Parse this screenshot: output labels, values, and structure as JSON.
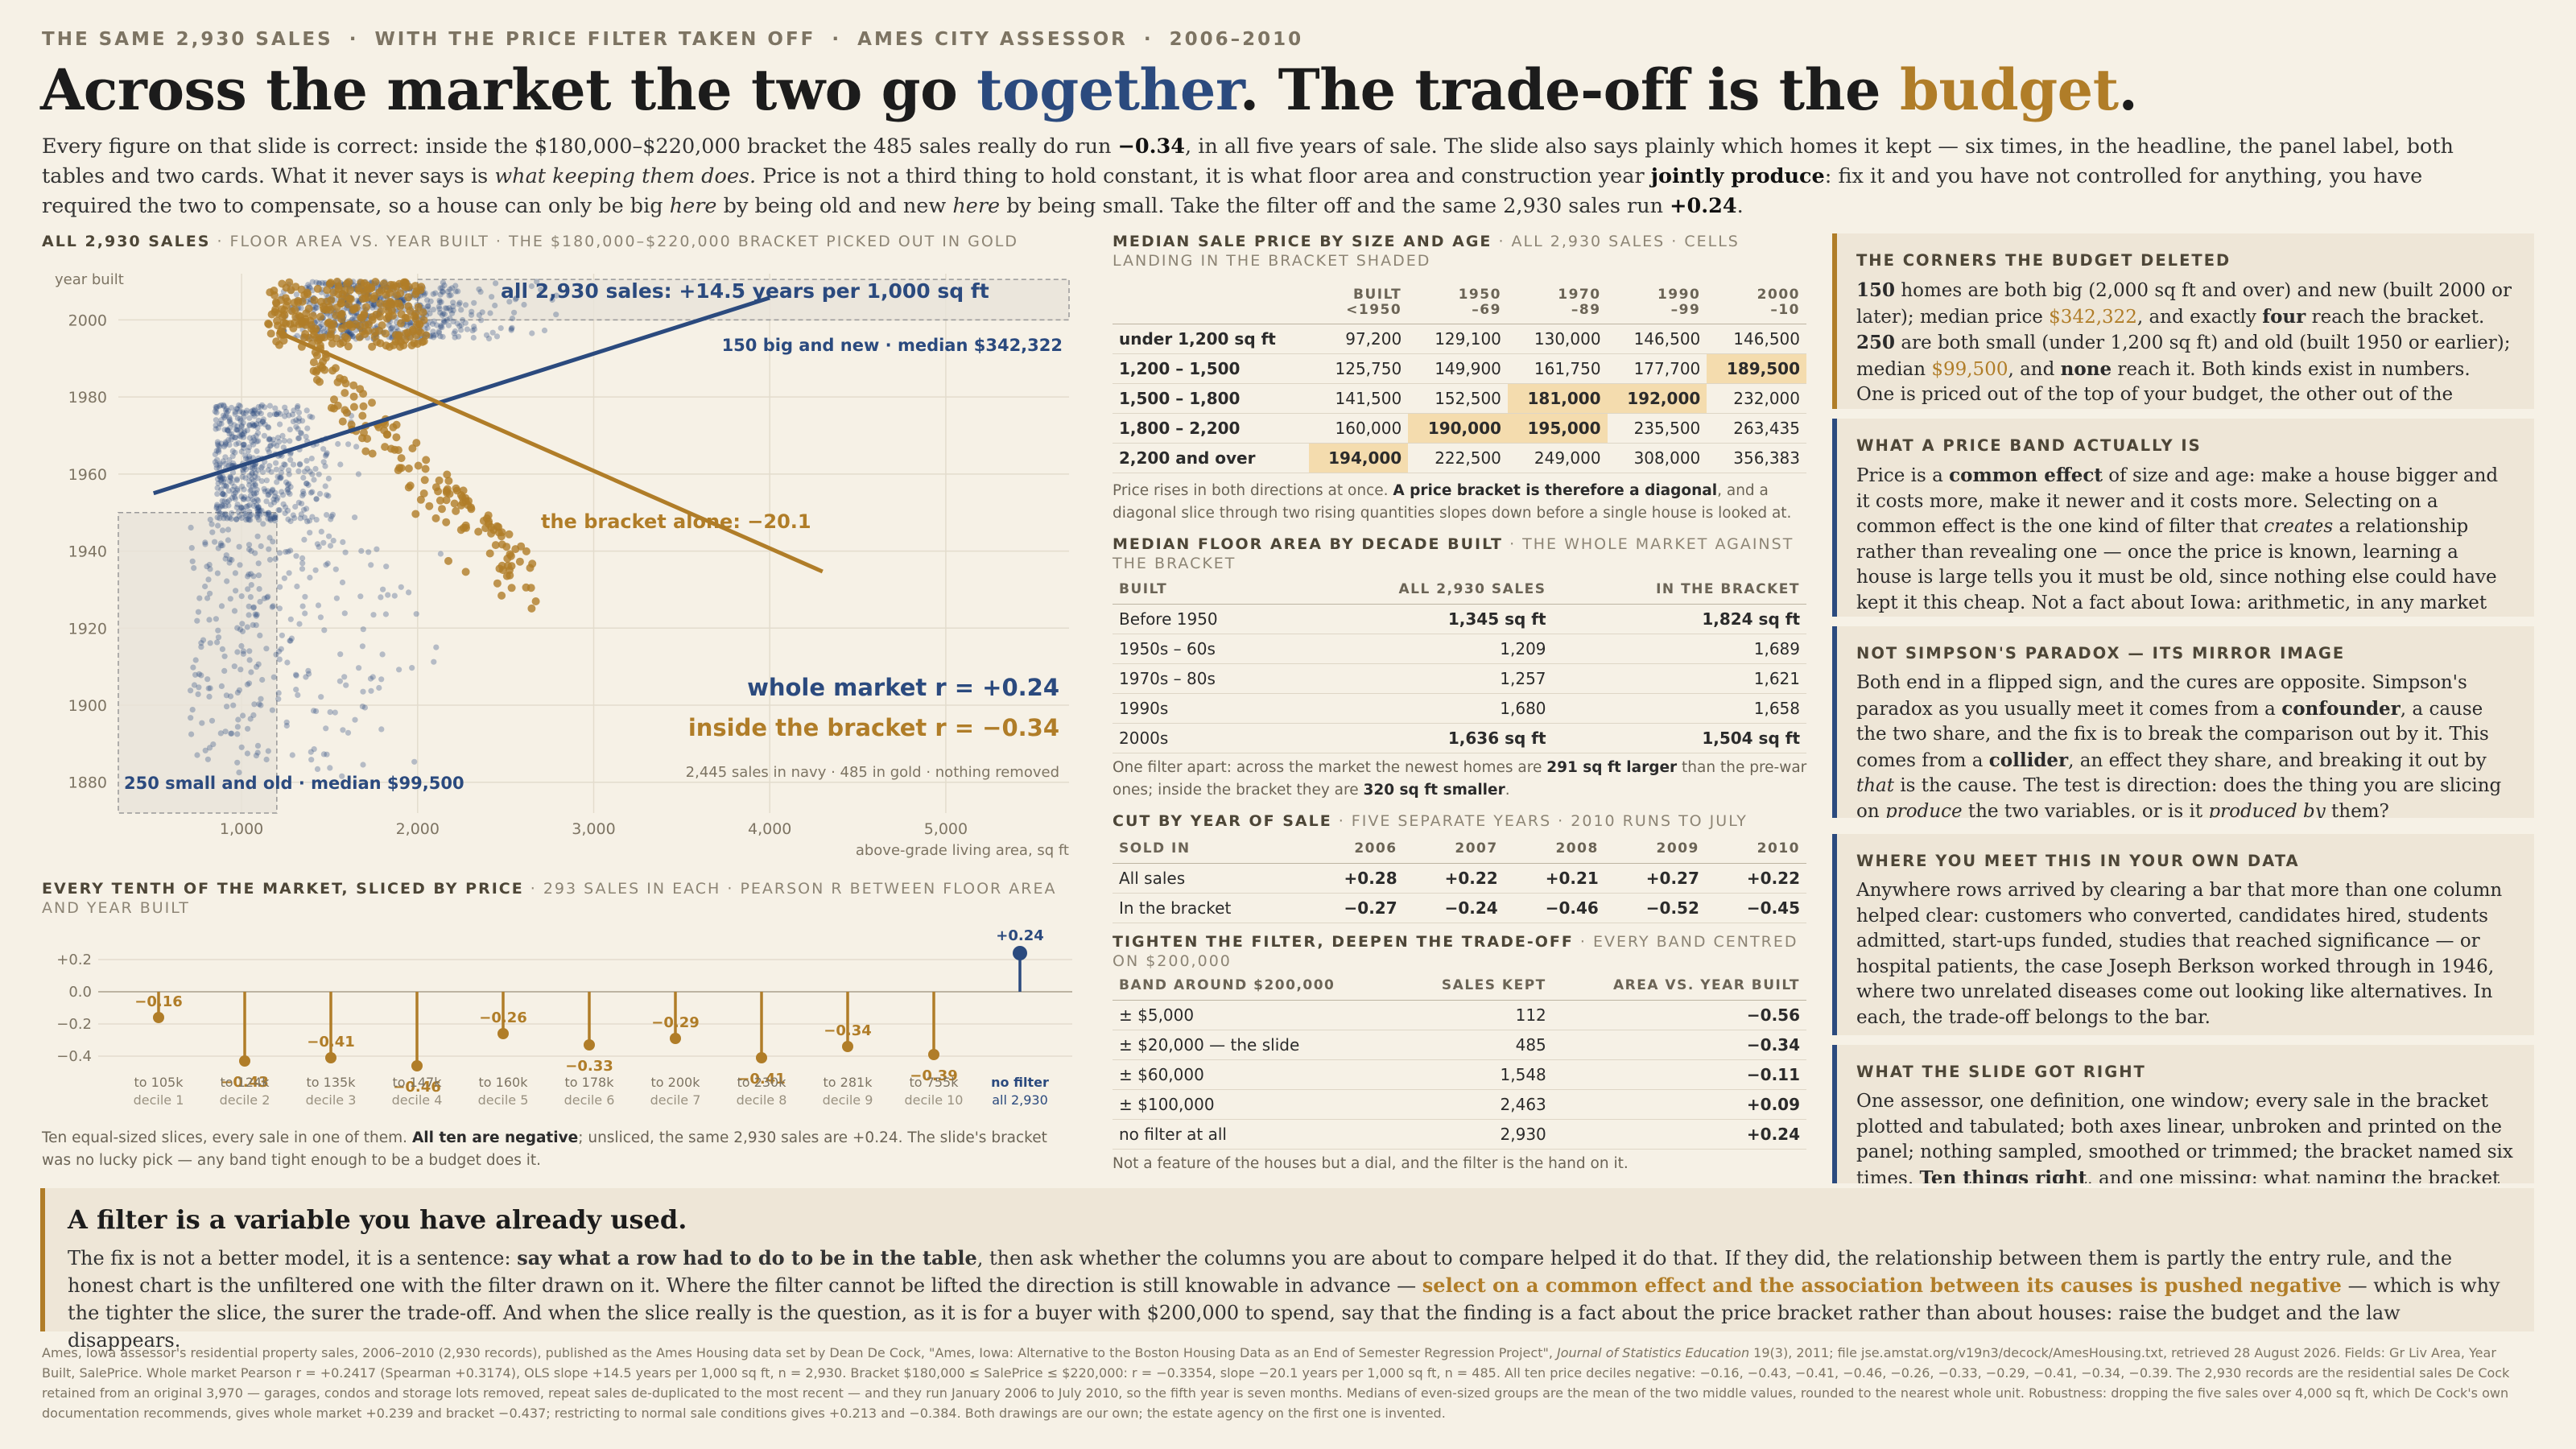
{
  "kicker": {
    "parts": [
      "THE SAME 2,930 SALES",
      "WITH THE PRICE FILTER TAKEN OFF",
      "AMES CITY ASSESSOR",
      "2006–2010"
    ],
    "separator": "·"
  },
  "headline": {
    "p1": "Across the market the two go ",
    "w1": "together",
    "p2": ". The trade-off is the ",
    "w2": "budget",
    "p3": "."
  },
  "lede": {
    "t1": "Every figure on that slide is correct: inside the $180,000–$220,000 bracket the 485 sales really do run ",
    "b1": "−0.34",
    "t2": ", in all five years of sale. The slide also says plainly which homes it kept — six times, in the headline, the panel label, both tables and two cards. What it never says is ",
    "i1": "what keeping them does.",
    "t3": " Price is not a third thing to hold constant, it is what floor area and construction year ",
    "b2": "jointly produce",
    "t4": ": fix it and you have not controlled for anything, you have required the two to compensate, so a house can only be big ",
    "i2": "here",
    "t5": " by being old and new ",
    "i3": "here",
    "t6": " by being small. Take the filter off and the same 2,930 sales run ",
    "b3": "+0.24",
    "t7": "."
  },
  "colors": {
    "navy": "#2b4a7e",
    "gold": "#b07d28",
    "background": "#f6f1e6",
    "highlight": "#f4dcae"
  },
  "scatter": {
    "title_bold": "ALL 2,930 SALES",
    "title_rest": " · FLOOR AREA VS. YEAR BUILT · THE $180,000–$220,000 BRACKET PICKED OUT IN GOLD",
    "y_label": "year built",
    "x_label": "above-grade living area, sq ft",
    "y_ticks": [
      "2000",
      "1980",
      "1960",
      "1940",
      "1920",
      "1900",
      "1880"
    ],
    "x_ticks": [
      "1,000",
      "2,000",
      "3,000",
      "4,000",
      "5,000"
    ],
    "line_market": "all 2,930 sales: +14.5 years per 1,000 sq ft",
    "line_bracket": "the bracket alone: −20.1",
    "corner_big_new": "150 big and new · median $342,322",
    "corner_small_old": "250 small and old · median $99,500",
    "r_market": "whole market r = +0.24",
    "r_bracket": "inside the bracket r = −0.34",
    "count_note": "2,445 sales in navy · 485 in gold · nothing removed"
  },
  "chart_data": {
    "type": "scatter",
    "xlabel": "above-grade living area, sq ft",
    "ylabel": "year built",
    "xlim": [
      300,
      5700
    ],
    "ylim": [
      1872,
      2012
    ],
    "series": [
      {
        "name": "2,445 sales in navy",
        "slope_per_1000": 14.5,
        "r": 0.24
      },
      {
        "name": "485 in gold",
        "slope_per_1000": -20.1,
        "r": -0.34
      }
    ],
    "grid": true
  },
  "deciles": {
    "title_bold": "EVERY TENTH OF THE MARKET, SLICED BY PRICE",
    "title_rest": " · 293 SALES IN EACH · PEARSON R BETWEEN FLOOR AREA AND YEAR BUILT",
    "y_ticks": [
      "+0.2",
      "0.0",
      "−0.2",
      "−0.4"
    ],
    "items": [
      {
        "value": -0.16,
        "label": "−0.16",
        "range": "to 105k",
        "name": "decile 1"
      },
      {
        "value": -0.43,
        "label": "−0.43",
        "range": "to 124k",
        "name": "decile 2"
      },
      {
        "value": -0.41,
        "label": "−0.41",
        "range": "to 135k",
        "name": "decile 3"
      },
      {
        "value": -0.46,
        "label": "−0.46",
        "range": "to 147k",
        "name": "decile 4"
      },
      {
        "value": -0.26,
        "label": "−0.26",
        "range": "to 160k",
        "name": "decile 5"
      },
      {
        "value": -0.33,
        "label": "−0.33",
        "range": "to 178k",
        "name": "decile 6"
      },
      {
        "value": -0.29,
        "label": "−0.29",
        "range": "to 200k",
        "name": "decile 7"
      },
      {
        "value": -0.41,
        "label": "−0.41",
        "range": "to 230k",
        "name": "decile 8"
      },
      {
        "value": -0.34,
        "label": "−0.34",
        "range": "to 281k",
        "name": "decile 9"
      },
      {
        "value": -0.39,
        "label": "−0.39",
        "range": "to 755k",
        "name": "decile 10"
      },
      {
        "value": 0.24,
        "label": "+0.24",
        "range": "no filter",
        "name": "all 2,930"
      }
    ],
    "note_t1": "Ten equal-sized slices, every sale in one of them. ",
    "note_b1": "All ten are negative",
    "note_t2": "; unsliced, the same 2,930 sales are +0.24. The slide's bracket was no lucky pick — any band tight enough to be a budget does it."
  },
  "median_price": {
    "title_bold": "MEDIAN SALE PRICE BY SIZE AND AGE",
    "title_rest": " · ALL 2,930 SALES · CELLS LANDING IN THE BRACKET SHADED",
    "col_heads": [
      [
        "BUILT",
        "<1950"
      ],
      [
        "1950",
        "–69"
      ],
      [
        "1970",
        "–89"
      ],
      [
        "1990",
        "–99"
      ],
      [
        "2000",
        "–10"
      ]
    ],
    "rows": [
      {
        "label": "under 1,200 sq ft",
        "cells": [
          "97,200",
          "129,100",
          "130,000",
          "146,500",
          "146,500"
        ]
      },
      {
        "label": "1,200 – 1,500",
        "cells": [
          "125,750",
          "149,900",
          "161,750",
          "177,700",
          "189,500"
        ]
      },
      {
        "label": "1,500 – 1,800",
        "cells": [
          "141,500",
          "152,500",
          "181,000",
          "192,000",
          "232,000"
        ]
      },
      {
        "label": "1,800 – 2,200",
        "cells": [
          "160,000",
          "190,000",
          "195,000",
          "235,500",
          "263,435"
        ]
      },
      {
        "label": "2,200 and over",
        "cells": [
          "194,000",
          "222,500",
          "249,000",
          "308,000",
          "356,383"
        ]
      }
    ],
    "note_t1": "Price rises in both directions at once. ",
    "note_b1": "A price bracket is therefore a diagonal",
    "note_t2": ", and a diagonal slice through two rising quantities slopes down before a single house is looked at."
  },
  "floor_area": {
    "title_bold": "MEDIAN FLOOR AREA BY DECADE BUILT",
    "title_rest": " · THE WHOLE MARKET AGAINST THE BRACKET",
    "heads": [
      "BUILT",
      "ALL 2,930 SALES",
      "IN THE BRACKET"
    ],
    "rows": [
      {
        "label": "Before 1950",
        "all": "1,345 sq ft",
        "bracket": "1,824 sq ft"
      },
      {
        "label": "1950s – 60s",
        "all": "1,209",
        "bracket": "1,689"
      },
      {
        "label": "1970s – 80s",
        "all": "1,257",
        "bracket": "1,621"
      },
      {
        "label": "1990s",
        "all": "1,680",
        "bracket": "1,658"
      },
      {
        "label": "2000s",
        "all": "1,636 sq ft",
        "bracket": "1,504 sq ft"
      }
    ],
    "note_t1": "One filter apart: across the market the newest homes are ",
    "note_b1": "291 sq ft larger",
    "note_t2": " than the pre-war ones; inside the bracket they are ",
    "note_b2": "320 sq ft smaller",
    "note_t3": "."
  },
  "by_year": {
    "title_bold": "CUT BY YEAR OF SALE",
    "title_rest": " · FIVE SEPARATE YEARS · 2010 RUNS TO JULY",
    "heads": [
      "SOLD IN",
      "2006",
      "2007",
      "2008",
      "2009",
      "2010"
    ],
    "rows": [
      {
        "label": "All sales",
        "cells": [
          "+0.28",
          "+0.22",
          "+0.21",
          "+0.27",
          "+0.22"
        ]
      },
      {
        "label": "In the bracket",
        "cells": [
          "−0.27",
          "−0.24",
          "−0.46",
          "−0.52",
          "−0.45"
        ]
      }
    ]
  },
  "tighten": {
    "title_bold": "TIGHTEN THE FILTER, DEEPEN THE TRADE-OFF",
    "title_rest": " · EVERY BAND CENTRED ON $200,000",
    "heads": [
      "BAND AROUND $200,000",
      "SALES KEPT",
      "AREA VS. YEAR BUILT"
    ],
    "rows": [
      {
        "label": "± $5,000",
        "kept": "112",
        "r": "−0.56"
      },
      {
        "label": "± $20,000 — the slide",
        "kept": "485",
        "r": "−0.34"
      },
      {
        "label": "± $60,000",
        "kept": "1,548",
        "r": "−0.11"
      },
      {
        "label": "± $100,000",
        "kept": "2,463",
        "r": "+0.09"
      },
      {
        "label": "no filter at all",
        "kept": "2,930",
        "r": "+0.24"
      }
    ],
    "note": "Not a feature of the houses but a dial, and the filter is the hand on it."
  },
  "cards": {
    "corners": {
      "title": "THE CORNERS THE BUDGET DELETED",
      "b1": "150",
      "t1": " homes are both big (2,000 sq ft and over) and new (built 2000 or later); median price ",
      "g1": "$342,322",
      "t2": ", and exactly ",
      "b2": "four",
      "t3": " reach the bracket. ",
      "b3": "250",
      "t4": " are both small (under 1,200 sq ft) and old (built 1950 or earlier); median ",
      "g2": "$99,500",
      "t5": ", and ",
      "b4": "none",
      "t6": " reach it. Both kinds exist in numbers. One is priced out of the top of your budget, the other out of the bottom."
    },
    "band": {
      "title": "WHAT A PRICE BAND ACTUALLY IS",
      "t1": "Price is a ",
      "b1": "common effect",
      "t2": " of size and age: make a house bigger and it costs more, make it newer and it costs more. Selecting on a common effect is the one kind of filter that ",
      "i1": "creates",
      "t3": " a relationship rather than revealing one — once the price is known, learning a house is large tells you it must be old, since nothing else could have kept it this cheap. Not a fact about Iowa: arithmetic, in any market where both cost money."
    },
    "simpson": {
      "title": "NOT SIMPSON'S PARADOX — ITS MIRROR IMAGE",
      "t1": "Both end in a flipped sign, and the cures are opposite. Simpson's paradox as you usually meet it comes from a ",
      "b1": "confounder",
      "t2": ", a cause the two share, and the fix is to break the comparison out by it. This comes from a ",
      "b2": "collider",
      "t3": ", an effect they share, and breaking it out by ",
      "i1": "that",
      "t4": " is the cause. The test is direction: does the thing you are slicing on ",
      "i2": "produce",
      "t5": " the two variables, or is it ",
      "i3": "produced by",
      "t6": " them?"
    },
    "where": {
      "title": "WHERE YOU MEET THIS IN YOUR OWN DATA",
      "text": "Anywhere rows arrived by clearing a bar that more than one column helped clear: customers who converted, candidates hired, students admitted, start-ups funded, studies that reached significance — or hospital patients, the case Joseph Berkson worked through in 1946, where two unrelated diseases come out looking like alternatives. In each, the trade-off belongs to the bar."
    },
    "right": {
      "title": "WHAT THE SLIDE GOT RIGHT",
      "t1": "One assessor, one definition, one window; every sale in the bracket plotted and tabulated; both axes linear, unbroken and printed on the panel; nothing sampled, smoothed or trimmed; the bracket named six times. ",
      "b1": "Ten things right",
      "t2": ", and one missing: what naming the bracket"
    }
  },
  "bottom": {
    "title": "A filter is a variable you have already used.",
    "t1": "The fix is not a better model, it is a sentence: ",
    "b1": "say what a row had to do to be in the table",
    "t2": ", then ask whether the columns you are about to compare helped it do that. If they did, the relationship between them is partly the entry rule, and the honest chart is the unfiltered one with the filter drawn on it. Where the filter cannot be lifted the direction is still knowable in advance — ",
    "g1": "select on a common effect and the association between its causes is pushed negative",
    "t3": " — which is why the tighter the slice, the surer the trade-off. And when the slice really is the question, as it is for a buyer with $200,000 to spend, say that the finding is a fact about the price bracket rather than about houses: raise the budget and the law disappears."
  },
  "footnote": {
    "t1": "Ames, Iowa assessor's residential property sales, 2006–2010 (2,930 records), published as the Ames Housing data set by Dean De Cock, \"Ames, Iowa: Alternative to the Boston Housing Data as an End of Semester Regression Project\", ",
    "i1": "Journal of Statistics Education",
    "t2": " 19(3), 2011; file jse.amstat.org/v19n3/decock/AmesHousing.txt, retrieved 28 August 2026. Fields: Gr Liv Area, Year Built, SalePrice. Whole market Pearson r = +0.2417 (Spearman +0.3174), OLS slope +14.5 years per 1,000 sq ft, n = 2,930. Bracket $180,000 ≤ SalePrice ≤ $220,000: r = −0.3354, slope −20.1 years per 1,000 sq ft, n = 485. All ten price deciles negative: −0.16, −0.43, −0.41, −0.46, −0.26, −0.33, −0.29, −0.41, −0.34, −0.39. The 2,930 records are the residential sales De Cock retained from an original 3,970 — garages, condos and storage lots removed, repeat sales de-duplicated to the most recent — and they run January 2006 to July 2010, so the fifth year is seven months. Medians of even-sized groups are the mean of the two middle values, rounded to the nearest whole unit. Robustness: dropping the five sales over 4,000 sq ft, which De Cock's own documentation recommends, gives whole market +0.239 and bracket −0.437; restricting to normal sale conditions gives +0.213 and −0.384. Both drawings are our own; the estate agency on the first one is invented."
  }
}
